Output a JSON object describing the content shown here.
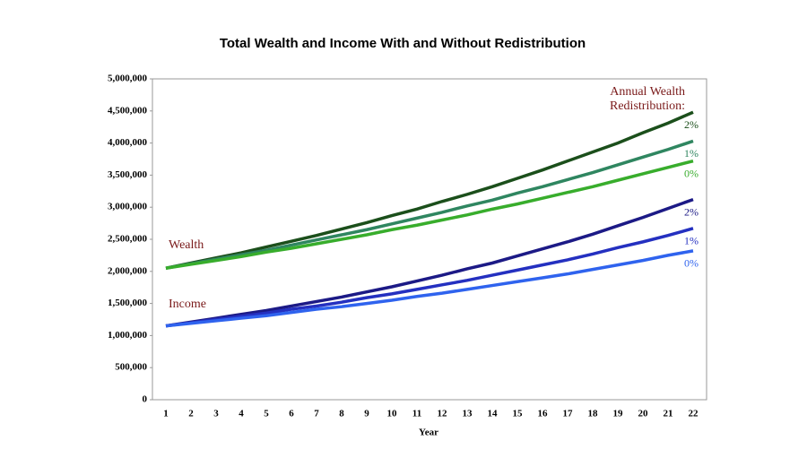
{
  "chart_data": {
    "type": "line",
    "title": "Total Wealth and Income With and Without Redistribution",
    "x_label": "Year",
    "categories": [
      1,
      2,
      3,
      4,
      5,
      6,
      7,
      8,
      9,
      10,
      11,
      12,
      13,
      14,
      15,
      16,
      17,
      18,
      19,
      20,
      21,
      22
    ],
    "ylim": [
      0,
      5000000
    ],
    "yticks": [
      {
        "value": 0,
        "label": "0"
      },
      {
        "value": 500000,
        "label": "500,000"
      },
      {
        "value": 1000000,
        "label": "1,000,000"
      },
      {
        "value": 1500000,
        "label": "1,500,000"
      },
      {
        "value": 2000000,
        "label": "2,000,000"
      },
      {
        "value": 2500000,
        "label": "2,500,000"
      },
      {
        "value": 3000000,
        "label": "3,000,000"
      },
      {
        "value": 3500000,
        "label": "3,500,000"
      },
      {
        "value": 4000000,
        "label": "4,000,000"
      },
      {
        "value": 4500000,
        "label": "4,500,000"
      },
      {
        "value": 5000000,
        "label": "5,000,000"
      }
    ],
    "annotations": [
      "Wealth",
      "Income",
      "Annual Wealth",
      "Redistribution:"
    ],
    "series": [
      {
        "name": "2%",
        "color": "#1b4f1b",
        "values": [
          2050000,
          2130000,
          2210000,
          2290000,
          2380000,
          2470000,
          2560000,
          2660000,
          2760000,
          2870000,
          2970000,
          3090000,
          3200000,
          3320000,
          3450000,
          3580000,
          3720000,
          3860000,
          4000000,
          4160000,
          4310000,
          4480000
        ]
      },
      {
        "name": "1%",
        "color": "#2f8660",
        "values": [
          2050000,
          2120000,
          2190000,
          2260000,
          2330000,
          2410000,
          2490000,
          2570000,
          2650000,
          2740000,
          2830000,
          2920000,
          3020000,
          3110000,
          3220000,
          3320000,
          3430000,
          3540000,
          3660000,
          3780000,
          3900000,
          4030000
        ]
      },
      {
        "name": "0%",
        "color": "#38ad2c",
        "values": [
          2050000,
          2110000,
          2170000,
          2230000,
          2300000,
          2360000,
          2430000,
          2500000,
          2570000,
          2650000,
          2720000,
          2800000,
          2880000,
          2970000,
          3050000,
          3140000,
          3230000,
          3320000,
          3420000,
          3520000,
          3620000,
          3720000
        ]
      },
      {
        "name": "2%",
        "color": "#1c1a86",
        "values": [
          1150000,
          1210000,
          1270000,
          1330000,
          1390000,
          1460000,
          1530000,
          1600000,
          1680000,
          1760000,
          1850000,
          1940000,
          2040000,
          2130000,
          2240000,
          2350000,
          2460000,
          2580000,
          2710000,
          2840000,
          2980000,
          3120000
        ]
      },
      {
        "name": "1%",
        "color": "#2430c0",
        "values": [
          1150000,
          1200000,
          1250000,
          1300000,
          1350000,
          1410000,
          1460000,
          1520000,
          1590000,
          1650000,
          1720000,
          1790000,
          1860000,
          1940000,
          2020000,
          2100000,
          2180000,
          2270000,
          2370000,
          2460000,
          2560000,
          2670000
        ]
      },
      {
        "name": "0%",
        "color": "#2f63ee",
        "values": [
          1150000,
          1190000,
          1230000,
          1270000,
          1310000,
          1360000,
          1410000,
          1450000,
          1500000,
          1550000,
          1610000,
          1660000,
          1720000,
          1780000,
          1840000,
          1900000,
          1960000,
          2030000,
          2100000,
          2170000,
          2250000,
          2320000
        ]
      }
    ]
  }
}
